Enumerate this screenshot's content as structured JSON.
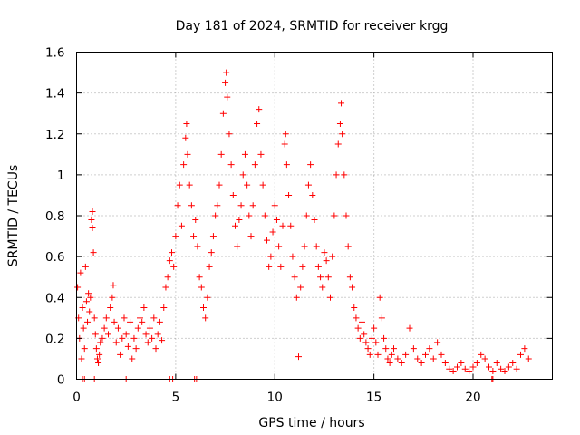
{
  "chart_data": {
    "type": "scatter",
    "title": "Day 181 of 2024, SRMTID for receiver krgg",
    "xlabel": "GPS time / hours",
    "ylabel": "SRMTID / TECUs",
    "xlim": [
      0,
      24
    ],
    "ylim": [
      0,
      1.6
    ],
    "xticks": [
      0,
      5,
      10,
      15,
      20
    ],
    "xtick_labels": [
      "0",
      "5",
      "10",
      "15",
      "20"
    ],
    "yticks": [
      0,
      0.2,
      0.4,
      0.6,
      0.8,
      1.0,
      1.2,
      1.4,
      1.6
    ],
    "ytick_labels": [
      "0",
      "0.2",
      "0.4",
      "0.6",
      "0.8",
      "1",
      "1.2",
      "1.4",
      "1.6"
    ],
    "grid": true,
    "marker": "+",
    "color": "#ff0000",
    "series": [
      {
        "name": "SRMTID",
        "points": [
          [
            0.05,
            0.45
          ],
          [
            0.1,
            0.3
          ],
          [
            0.15,
            0.2
          ],
          [
            0.2,
            0.52
          ],
          [
            0.25,
            0.1
          ],
          [
            0.3,
            0.35
          ],
          [
            0.35,
            0.25
          ],
          [
            0.4,
            0.15
          ],
          [
            0.45,
            0.55
          ],
          [
            0.5,
            0.38
          ],
          [
            0.55,
            0.28
          ],
          [
            0.6,
            0.42
          ],
          [
            0.65,
            0.33
          ],
          [
            0.7,
            0.4
          ],
          [
            0.75,
            0.78
          ],
          [
            0.8,
            0.82
          ],
          [
            0.8,
            0.74
          ],
          [
            0.85,
            0.62
          ],
          [
            0.9,
            0.3
          ],
          [
            0.95,
            0.22
          ],
          [
            1.0,
            0.15
          ],
          [
            1.05,
            0.1
          ],
          [
            1.1,
            0.08
          ],
          [
            1.15,
            0.12
          ],
          [
            1.2,
            0.18
          ],
          [
            1.3,
            0.2
          ],
          [
            1.4,
            0.25
          ],
          [
            1.5,
            0.3
          ],
          [
            1.6,
            0.22
          ],
          [
            1.7,
            0.35
          ],
          [
            1.8,
            0.4
          ],
          [
            1.85,
            0.46
          ],
          [
            1.9,
            0.28
          ],
          [
            2.0,
            0.18
          ],
          [
            2.1,
            0.25
          ],
          [
            2.2,
            0.12
          ],
          [
            2.3,
            0.2
          ],
          [
            2.4,
            0.3
          ],
          [
            2.5,
            0.22
          ],
          [
            2.6,
            0.16
          ],
          [
            2.7,
            0.28
          ],
          [
            2.8,
            0.1
          ],
          [
            2.9,
            0.2
          ],
          [
            3.0,
            0.15
          ],
          [
            3.1,
            0.25
          ],
          [
            3.2,
            0.3
          ],
          [
            3.3,
            0.28
          ],
          [
            3.4,
            0.35
          ],
          [
            3.5,
            0.22
          ],
          [
            3.6,
            0.18
          ],
          [
            3.7,
            0.25
          ],
          [
            3.8,
            0.2
          ],
          [
            3.9,
            0.3
          ],
          [
            4.0,
            0.15
          ],
          [
            4.1,
            0.22
          ],
          [
            4.2,
            0.28
          ],
          [
            4.3,
            0.19
          ],
          [
            4.4,
            0.35
          ],
          [
            4.5,
            0.45
          ],
          [
            4.6,
            0.5
          ],
          [
            4.7,
            0.58
          ],
          [
            4.8,
            0.62
          ],
          [
            4.9,
            0.55
          ],
          [
            5.0,
            0.7
          ],
          [
            5.1,
            0.85
          ],
          [
            5.2,
            0.95
          ],
          [
            5.3,
            0.75
          ],
          [
            5.4,
            1.05
          ],
          [
            5.5,
            1.18
          ],
          [
            5.55,
            1.25
          ],
          [
            5.6,
            1.1
          ],
          [
            5.7,
            0.95
          ],
          [
            5.8,
            0.85
          ],
          [
            5.9,
            0.7
          ],
          [
            6.0,
            0.78
          ],
          [
            6.1,
            0.65
          ],
          [
            6.2,
            0.5
          ],
          [
            6.3,
            0.45
          ],
          [
            6.4,
            0.35
          ],
          [
            6.5,
            0.3
          ],
          [
            6.6,
            0.4
          ],
          [
            6.7,
            0.55
          ],
          [
            6.8,
            0.62
          ],
          [
            6.9,
            0.7
          ],
          [
            7.0,
            0.8
          ],
          [
            7.1,
            0.85
          ],
          [
            7.2,
            0.95
          ],
          [
            7.3,
            1.1
          ],
          [
            7.4,
            1.3
          ],
          [
            7.5,
            1.45
          ],
          [
            7.55,
            1.5
          ],
          [
            7.6,
            1.38
          ],
          [
            7.7,
            1.2
          ],
          [
            7.8,
            1.05
          ],
          [
            7.9,
            0.9
          ],
          [
            8.0,
            0.75
          ],
          [
            8.1,
            0.65
          ],
          [
            8.2,
            0.78
          ],
          [
            8.3,
            0.85
          ],
          [
            8.4,
            1.0
          ],
          [
            8.5,
            1.1
          ],
          [
            8.6,
            0.95
          ],
          [
            8.7,
            0.8
          ],
          [
            8.8,
            0.7
          ],
          [
            8.9,
            0.85
          ],
          [
            9.0,
            1.05
          ],
          [
            9.1,
            1.25
          ],
          [
            9.2,
            1.32
          ],
          [
            9.3,
            1.1
          ],
          [
            9.4,
            0.95
          ],
          [
            9.5,
            0.8
          ],
          [
            9.6,
            0.68
          ],
          [
            9.7,
            0.55
          ],
          [
            9.8,
            0.6
          ],
          [
            9.9,
            0.72
          ],
          [
            10.0,
            0.85
          ],
          [
            10.1,
            0.78
          ],
          [
            10.2,
            0.65
          ],
          [
            10.3,
            0.55
          ],
          [
            10.4,
            0.75
          ],
          [
            10.5,
            1.15
          ],
          [
            10.55,
            1.2
          ],
          [
            10.6,
            1.05
          ],
          [
            10.7,
            0.9
          ],
          [
            10.8,
            0.75
          ],
          [
            10.9,
            0.6
          ],
          [
            11.0,
            0.5
          ],
          [
            11.1,
            0.4
          ],
          [
            11.2,
            0.11
          ],
          [
            11.3,
            0.45
          ],
          [
            11.4,
            0.55
          ],
          [
            11.5,
            0.65
          ],
          [
            11.6,
            0.8
          ],
          [
            11.7,
            0.95
          ],
          [
            11.8,
            1.05
          ],
          [
            11.9,
            0.9
          ],
          [
            12.0,
            0.78
          ],
          [
            12.1,
            0.65
          ],
          [
            12.2,
            0.55
          ],
          [
            12.3,
            0.5
          ],
          [
            12.4,
            0.45
          ],
          [
            12.5,
            0.62
          ],
          [
            12.6,
            0.58
          ],
          [
            12.7,
            0.5
          ],
          [
            12.8,
            0.4
          ],
          [
            12.9,
            0.6
          ],
          [
            13.0,
            0.8
          ],
          [
            13.1,
            1.0
          ],
          [
            13.2,
            1.15
          ],
          [
            13.3,
            1.25
          ],
          [
            13.35,
            1.35
          ],
          [
            13.4,
            1.2
          ],
          [
            13.5,
            1.0
          ],
          [
            13.6,
            0.8
          ],
          [
            13.7,
            0.65
          ],
          [
            13.8,
            0.5
          ],
          [
            13.9,
            0.45
          ],
          [
            14.0,
            0.35
          ],
          [
            14.1,
            0.3
          ],
          [
            14.2,
            0.25
          ],
          [
            14.3,
            0.2
          ],
          [
            14.4,
            0.28
          ],
          [
            14.5,
            0.22
          ],
          [
            14.6,
            0.18
          ],
          [
            14.7,
            0.15
          ],
          [
            14.8,
            0.12
          ],
          [
            14.9,
            0.2
          ],
          [
            15.0,
            0.25
          ],
          [
            15.1,
            0.18
          ],
          [
            15.2,
            0.12
          ],
          [
            15.3,
            0.4
          ],
          [
            15.4,
            0.3
          ],
          [
            15.5,
            0.2
          ],
          [
            15.6,
            0.15
          ],
          [
            15.7,
            0.1
          ],
          [
            15.8,
            0.08
          ],
          [
            15.9,
            0.12
          ],
          [
            16.0,
            0.15
          ],
          [
            16.2,
            0.1
          ],
          [
            16.4,
            0.08
          ],
          [
            16.6,
            0.12
          ],
          [
            16.8,
            0.25
          ],
          [
            17.0,
            0.15
          ],
          [
            17.2,
            0.1
          ],
          [
            17.4,
            0.08
          ],
          [
            17.6,
            0.12
          ],
          [
            17.8,
            0.15
          ],
          [
            18.0,
            0.1
          ],
          [
            18.2,
            0.18
          ],
          [
            18.4,
            0.12
          ],
          [
            18.6,
            0.08
          ],
          [
            18.8,
            0.05
          ],
          [
            19.0,
            0.04
          ],
          [
            19.2,
            0.06
          ],
          [
            19.4,
            0.08
          ],
          [
            19.6,
            0.05
          ],
          [
            19.8,
            0.04
          ],
          [
            20.0,
            0.06
          ],
          [
            20.2,
            0.08
          ],
          [
            20.4,
            0.12
          ],
          [
            20.6,
            0.1
          ],
          [
            20.8,
            0.06
          ],
          [
            21.0,
            0.04
          ],
          [
            21.2,
            0.08
          ],
          [
            21.4,
            0.05
          ],
          [
            21.6,
            0.04
          ],
          [
            21.8,
            0.06
          ],
          [
            22.0,
            0.08
          ],
          [
            22.2,
            0.05
          ],
          [
            22.4,
            0.12
          ],
          [
            22.6,
            0.15
          ],
          [
            22.8,
            0.1
          ],
          [
            0.3,
            0.0
          ],
          [
            0.4,
            0.0
          ],
          [
            0.9,
            0.0
          ],
          [
            2.5,
            0.0
          ],
          [
            4.7,
            0.0
          ],
          [
            4.85,
            0.0
          ],
          [
            5.95,
            0.0
          ],
          [
            6.05,
            0.0
          ],
          [
            20.95,
            0.0
          ],
          [
            21.0,
            0.0
          ]
        ]
      }
    ]
  }
}
